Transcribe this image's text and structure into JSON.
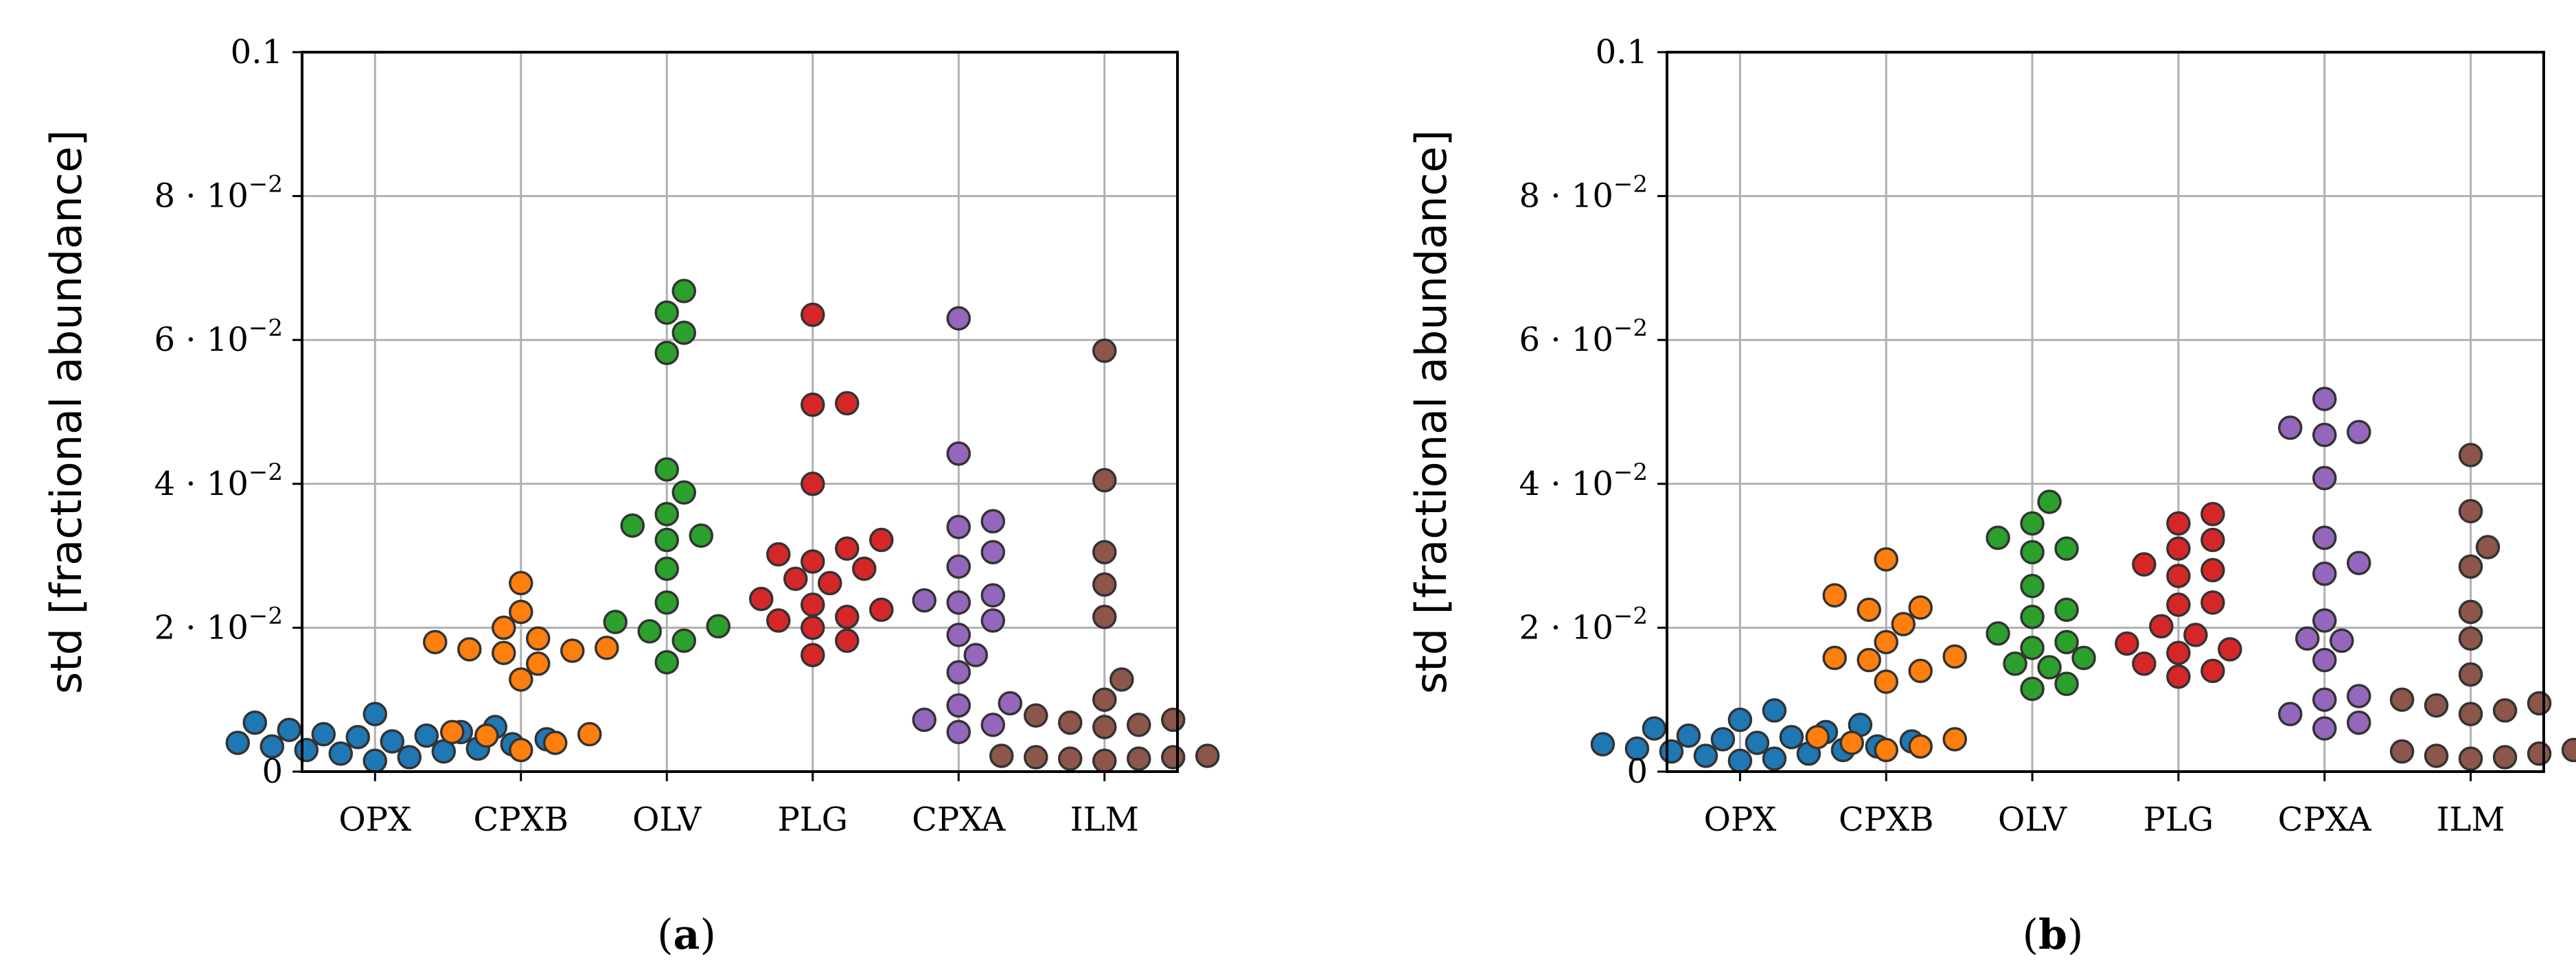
{
  "chart_data": [
    {
      "type": "scatter",
      "panel_label": "(a)",
      "ylabel": "std [fractional abundance]",
      "ylim": [
        0,
        0.1
      ],
      "yticks": [
        {
          "value": 0,
          "base": "0",
          "exp": ""
        },
        {
          "value": 0.02,
          "base": "2 · 10",
          "exp": "−2"
        },
        {
          "value": 0.04,
          "base": "4 · 10",
          "exp": "−2"
        },
        {
          "value": 0.06,
          "base": "6 · 10",
          "exp": "−2"
        },
        {
          "value": 0.08,
          "base": "8 · 10",
          "exp": "−2"
        },
        {
          "value": 0.1,
          "base": "0.1",
          "exp": ""
        }
      ],
      "grid": true,
      "categories": [
        "OPX",
        "CPXB",
        "OLV",
        "PLG",
        "CPXA",
        "ILM"
      ],
      "series": [
        {
          "color": "#1f77b4",
          "values": [
            0.0015,
            0.002,
            0.0025,
            0.0028,
            0.003,
            0.0032,
            0.0035,
            0.0038,
            0.004,
            0.0042,
            0.0045,
            0.0048,
            0.005,
            0.0052,
            0.0055,
            0.0058,
            0.0062,
            0.0068,
            0.008
          ]
        },
        {
          "color": "#ff7f0e",
          "values": [
            0.003,
            0.004,
            0.005,
            0.0052,
            0.0055,
            0.0128,
            0.015,
            0.0165,
            0.0168,
            0.017,
            0.0172,
            0.018,
            0.0185,
            0.02,
            0.0222,
            0.0262
          ]
        },
        {
          "color": "#2ca02c",
          "values": [
            0.0152,
            0.0182,
            0.0195,
            0.0202,
            0.0208,
            0.0235,
            0.0282,
            0.0322,
            0.0328,
            0.0342,
            0.0358,
            0.0388,
            0.042,
            0.0582,
            0.061,
            0.0638,
            0.0668
          ]
        },
        {
          "color": "#d62728",
          "values": [
            0.0162,
            0.0182,
            0.02,
            0.021,
            0.0215,
            0.0225,
            0.0232,
            0.024,
            0.0262,
            0.0268,
            0.0282,
            0.0292,
            0.0302,
            0.031,
            0.0322,
            0.04,
            0.051,
            0.0512,
            0.0635
          ]
        },
        {
          "color": "#9467bd",
          "values": [
            0.0055,
            0.0065,
            0.0072,
            0.0092,
            0.0095,
            0.0138,
            0.0162,
            0.019,
            0.021,
            0.0235,
            0.0238,
            0.0245,
            0.0285,
            0.0305,
            0.034,
            0.0348,
            0.0442,
            0.063
          ]
        },
        {
          "color": "#8c564b",
          "values": [
            0.0015,
            0.0018,
            0.0018,
            0.002,
            0.002,
            0.0022,
            0.0022,
            0.0062,
            0.0065,
            0.0068,
            0.0072,
            0.0078,
            0.01,
            0.0128,
            0.0215,
            0.026,
            0.0305,
            0.0405,
            0.0585
          ]
        }
      ]
    },
    {
      "type": "scatter",
      "panel_label": "(b)",
      "ylabel": "std [fractional abundance]",
      "ylim": [
        0,
        0.1
      ],
      "yticks": [
        {
          "value": 0,
          "base": "0",
          "exp": ""
        },
        {
          "value": 0.02,
          "base": "2 · 10",
          "exp": "−2"
        },
        {
          "value": 0.04,
          "base": "4 · 10",
          "exp": "−2"
        },
        {
          "value": 0.06,
          "base": "6 · 10",
          "exp": "−2"
        },
        {
          "value": 0.08,
          "base": "8 · 10",
          "exp": "−2"
        },
        {
          "value": 0.1,
          "base": "0.1",
          "exp": ""
        }
      ],
      "grid": true,
      "categories": [
        "OPX",
        "CPXB",
        "OLV",
        "PLG",
        "CPXA",
        "ILM"
      ],
      "series": [
        {
          "color": "#1f77b4",
          "values": [
            0.0015,
            0.0018,
            0.0022,
            0.0025,
            0.0028,
            0.003,
            0.0032,
            0.0035,
            0.0038,
            0.004,
            0.0042,
            0.0045,
            0.0048,
            0.005,
            0.0055,
            0.006,
            0.0065,
            0.0072,
            0.0085
          ]
        },
        {
          "color": "#ff7f0e",
          "values": [
            0.003,
            0.0035,
            0.004,
            0.0045,
            0.0048,
            0.0125,
            0.014,
            0.0155,
            0.0158,
            0.016,
            0.018,
            0.0205,
            0.0225,
            0.0228,
            0.0245,
            0.0295
          ]
        },
        {
          "color": "#2ca02c",
          "values": [
            0.0115,
            0.0122,
            0.0145,
            0.015,
            0.0158,
            0.0172,
            0.018,
            0.0192,
            0.0215,
            0.0225,
            0.0258,
            0.0305,
            0.031,
            0.0325,
            0.0345,
            0.0375
          ]
        },
        {
          "color": "#d62728",
          "values": [
            0.0132,
            0.014,
            0.015,
            0.0165,
            0.017,
            0.0178,
            0.019,
            0.0202,
            0.0232,
            0.0235,
            0.0272,
            0.028,
            0.0288,
            0.031,
            0.0322,
            0.0345,
            0.0358
          ]
        },
        {
          "color": "#9467bd",
          "values": [
            0.006,
            0.0068,
            0.008,
            0.01,
            0.0105,
            0.0155,
            0.0182,
            0.0185,
            0.021,
            0.0275,
            0.029,
            0.0325,
            0.0408,
            0.0468,
            0.0472,
            0.0478,
            0.0518
          ]
        },
        {
          "color": "#8c564b",
          "values": [
            0.0018,
            0.002,
            0.0022,
            0.0025,
            0.0028,
            0.003,
            0.008,
            0.0085,
            0.0092,
            0.0095,
            0.01,
            0.0135,
            0.0185,
            0.0222,
            0.0285,
            0.0312,
            0.0362,
            0.044
          ]
        }
      ]
    }
  ]
}
